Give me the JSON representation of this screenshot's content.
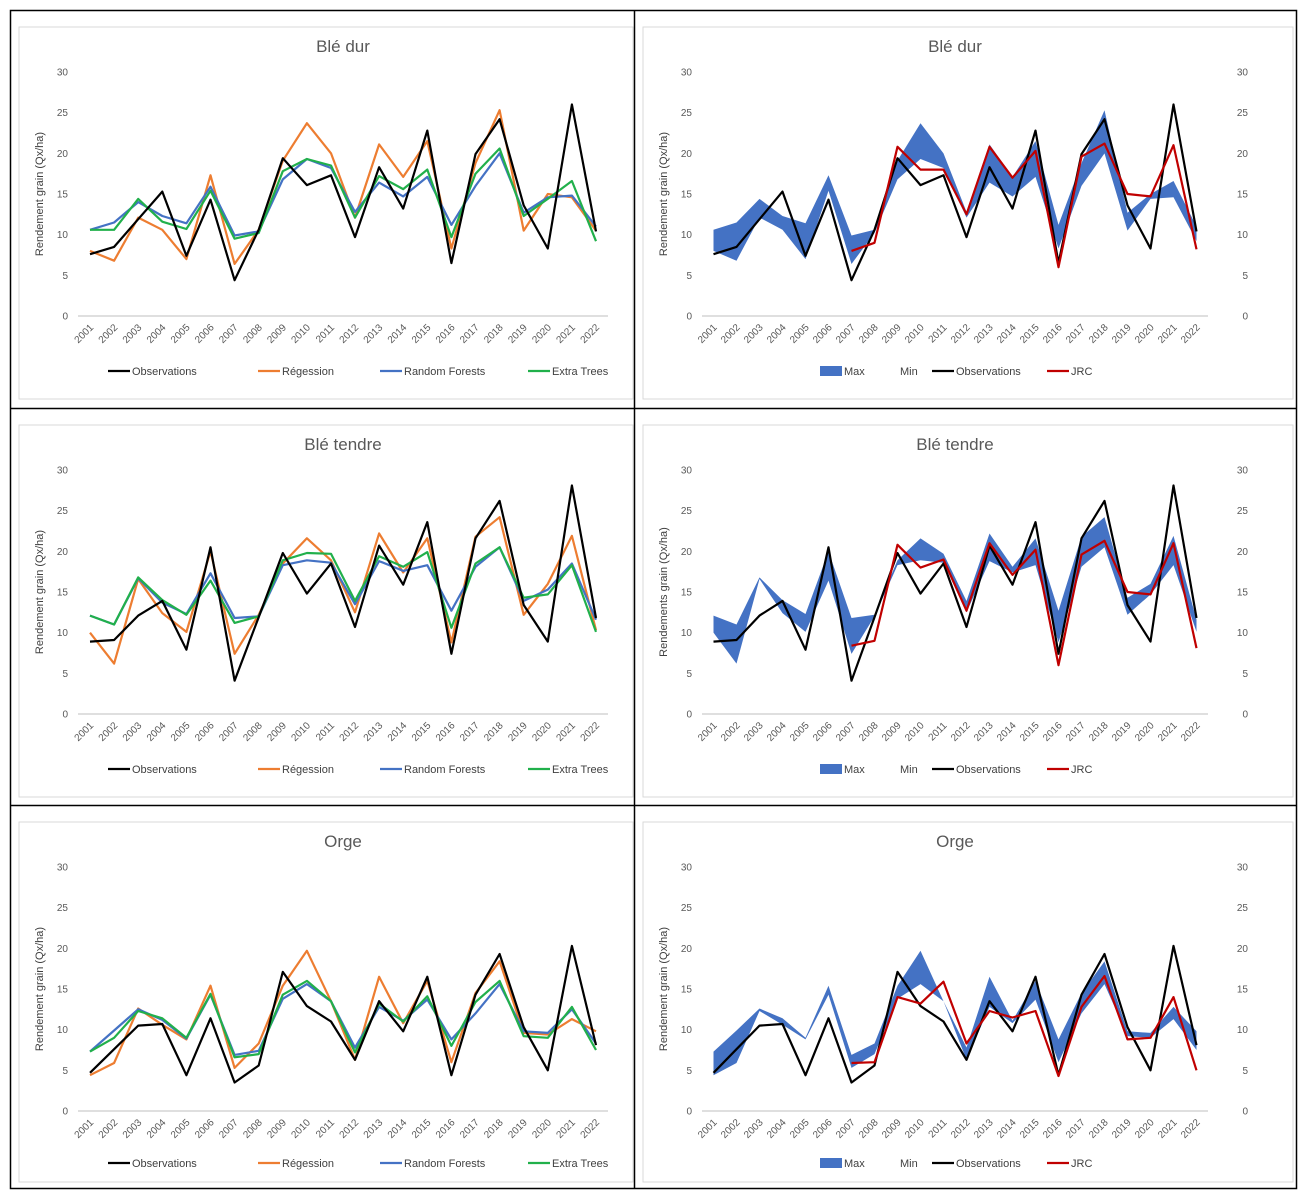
{
  "colors": {
    "observations": "#000000",
    "regression": "#ED7D31",
    "random_forests": "#4472C4",
    "extra_trees": "#21B04B",
    "band": "#4472C4",
    "jrc": "#C00000"
  },
  "chart_data": [
    {
      "type": "line",
      "title": "Blé dur",
      "ylabel": "Rendement grain (Qx/ha)",
      "ylim": [
        0,
        30
      ],
      "yticks": [
        "0",
        "5",
        "10",
        "15",
        "20",
        "25",
        "30"
      ],
      "categories": [
        "2001",
        "2002",
        "2003",
        "2004",
        "2005",
        "2006",
        "2007",
        "2008",
        "2009",
        "2010",
        "2011",
        "2012",
        "2013",
        "2014",
        "2015",
        "2016",
        "2017",
        "2018",
        "2019",
        "2020",
        "2021",
        "2022"
      ],
      "series": [
        {
          "name": "Observations",
          "color_key": "observations",
          "values": [
            7.6,
            8.5,
            11.9,
            15.3,
            7.4,
            14.3,
            4.4,
            10.6,
            19.4,
            16.1,
            17.3,
            9.7,
            18.3,
            13.2,
            22.8,
            6.5,
            19.9,
            24.2,
            13.6,
            8.3,
            26.0,
            10.4
          ]
        },
        {
          "name": "Régession",
          "color_key": "regression",
          "values": [
            8.0,
            6.8,
            12.1,
            10.6,
            7.0,
            17.3,
            6.4,
            10.6,
            19.1,
            23.7,
            20.0,
            12.1,
            21.1,
            17.1,
            21.5,
            8.3,
            18.8,
            25.3,
            10.5,
            15.0,
            14.6,
            10.5
          ]
        },
        {
          "name": "Random Forests",
          "color_key": "random_forests",
          "values": [
            10.6,
            11.5,
            14.0,
            12.3,
            11.4,
            15.9,
            9.9,
            10.4,
            16.8,
            19.3,
            18.2,
            12.8,
            16.4,
            14.7,
            17.1,
            11.2,
            16.0,
            20.0,
            12.7,
            14.6,
            14.8,
            11.0
          ]
        },
        {
          "name": "Extra Trees",
          "color_key": "extra_trees",
          "values": [
            10.6,
            10.6,
            14.4,
            11.6,
            10.7,
            15.4,
            9.5,
            10.2,
            17.8,
            19.3,
            18.5,
            12.1,
            17.2,
            15.6,
            18.0,
            9.7,
            17.5,
            20.6,
            12.3,
            14.4,
            16.6,
            9.2
          ]
        }
      ]
    },
    {
      "type": "area",
      "title": "Blé dur",
      "ylabel": "Rendement grain (Qx/ha)",
      "ylim": [
        0,
        30
      ],
      "yticks": [
        "0",
        "5",
        "10",
        "15",
        "20",
        "25",
        "30"
      ],
      "secondary_axis": true,
      "categories": [
        "2001",
        "2002",
        "2003",
        "2004",
        "2005",
        "2006",
        "2007",
        "2008",
        "2009",
        "2010",
        "2011",
        "2012",
        "2013",
        "2014",
        "2015",
        "2016",
        "2017",
        "2018",
        "2019",
        "2020",
        "2021",
        "2022"
      ],
      "legend": [
        "Max",
        "Min",
        "Observations",
        "JRC"
      ],
      "band": {
        "max": [
          10.6,
          11.5,
          14.4,
          12.3,
          11.4,
          17.3,
          9.9,
          10.6,
          19.1,
          23.7,
          20.0,
          12.8,
          21.1,
          17.1,
          21.5,
          11.2,
          18.8,
          25.3,
          12.7,
          15.0,
          16.6,
          11.0
        ],
        "min": [
          8.0,
          6.8,
          12.1,
          10.6,
          7.0,
          15.4,
          6.4,
          10.2,
          16.8,
          19.3,
          18.2,
          12.1,
          16.4,
          14.7,
          17.1,
          8.3,
          16.0,
          20.0,
          10.5,
          14.4,
          14.6,
          9.2
        ]
      },
      "series": [
        {
          "name": "Observations",
          "color_key": "observations",
          "values": [
            7.6,
            8.5,
            11.9,
            15.3,
            7.4,
            14.3,
            4.4,
            10.6,
            19.4,
            16.1,
            17.3,
            9.7,
            18.3,
            13.2,
            22.8,
            6.5,
            19.9,
            24.2,
            13.6,
            8.3,
            26.0,
            10.4
          ]
        },
        {
          "name": "JRC",
          "color_key": "jrc",
          "values": [
            null,
            null,
            null,
            null,
            null,
            null,
            8.0,
            9.0,
            20.8,
            18.0,
            18.0,
            12.5,
            20.8,
            17.0,
            20.3,
            6.0,
            19.6,
            21.2,
            15.0,
            14.7,
            21.0,
            8.2
          ]
        }
      ]
    },
    {
      "type": "line",
      "title": "Blé tendre",
      "ylabel": "Rendement grain (Qx/ha)",
      "ylim": [
        0,
        30
      ],
      "yticks": [
        "0",
        "5",
        "10",
        "15",
        "20",
        "25",
        "30"
      ],
      "categories": [
        "2001",
        "2002",
        "2003",
        "2004",
        "2005",
        "2006",
        "2007",
        "2008",
        "2009",
        "2010",
        "2011",
        "2012",
        "2013",
        "2014",
        "2015",
        "2016",
        "2017",
        "2018",
        "2019",
        "2020",
        "2021",
        "2022"
      ],
      "series": [
        {
          "name": "Observations",
          "color_key": "observations",
          "values": [
            8.9,
            9.1,
            12.1,
            13.9,
            7.9,
            20.5,
            4.1,
            11.9,
            19.8,
            14.8,
            18.5,
            10.7,
            20.7,
            15.9,
            23.6,
            7.4,
            21.6,
            26.2,
            13.4,
            8.9,
            28.1,
            11.8
          ]
        },
        {
          "name": "Régession",
          "color_key": "regression",
          "values": [
            10.0,
            6.2,
            16.6,
            12.4,
            10.1,
            20.0,
            7.4,
            12.2,
            18.5,
            21.6,
            18.9,
            12.5,
            22.2,
            17.4,
            21.6,
            8.8,
            21.8,
            24.2,
            12.2,
            16.0,
            21.9,
            10.3
          ]
        },
        {
          "name": "Random Forests",
          "color_key": "random_forests",
          "values": [
            12.1,
            11.0,
            16.7,
            13.7,
            12.3,
            17.3,
            11.8,
            12.0,
            18.3,
            18.9,
            18.6,
            13.5,
            18.8,
            17.6,
            18.3,
            12.7,
            18.1,
            20.5,
            13.9,
            15.3,
            18.5,
            11.6
          ]
        },
        {
          "name": "Extra Trees",
          "color_key": "extra_trees",
          "values": [
            12.1,
            11.0,
            16.8,
            14.0,
            12.2,
            16.4,
            11.2,
            12.0,
            18.9,
            19.8,
            19.7,
            13.9,
            19.4,
            18.1,
            19.9,
            10.6,
            18.5,
            20.5,
            14.3,
            14.7,
            18.3,
            10.1
          ]
        }
      ]
    },
    {
      "type": "area",
      "title": "Blé tendre",
      "ylabel": "Rendements grain (Qx/ha)",
      "ylim": [
        0,
        30
      ],
      "yticks": [
        "0",
        "5",
        "10",
        "15",
        "20",
        "25",
        "30"
      ],
      "secondary_axis": true,
      "categories": [
        "2001",
        "2002",
        "2003",
        "2004",
        "2005",
        "2006",
        "2007",
        "2008",
        "2009",
        "2010",
        "2011",
        "2012",
        "2013",
        "2014",
        "2015",
        "2016",
        "2017",
        "2018",
        "2019",
        "2020",
        "2021",
        "2022"
      ],
      "legend": [
        "Max",
        "Min",
        "Observations",
        "JRC"
      ],
      "band": {
        "max": [
          12.1,
          11.0,
          16.8,
          14.0,
          12.3,
          20.0,
          11.8,
          12.2,
          18.9,
          21.6,
          19.7,
          13.9,
          22.2,
          18.1,
          21.6,
          12.7,
          21.8,
          24.2,
          14.3,
          16.0,
          21.9,
          11.6
        ],
        "min": [
          10.0,
          6.2,
          16.6,
          12.4,
          10.1,
          16.4,
          7.4,
          12.0,
          18.3,
          18.9,
          18.6,
          12.5,
          18.8,
          17.4,
          18.3,
          8.8,
          18.1,
          20.5,
          12.2,
          14.7,
          18.3,
          10.1
        ]
      },
      "series": [
        {
          "name": "Observations",
          "color_key": "observations",
          "values": [
            8.9,
            9.1,
            12.1,
            13.9,
            7.9,
            20.5,
            4.1,
            11.9,
            19.8,
            14.8,
            18.5,
            10.7,
            20.7,
            15.9,
            23.6,
            7.4,
            21.6,
            26.2,
            13.4,
            8.9,
            28.1,
            11.8
          ]
        },
        {
          "name": "JRC",
          "color_key": "jrc",
          "values": [
            null,
            null,
            null,
            null,
            null,
            null,
            8.4,
            9.0,
            20.8,
            18.0,
            19.0,
            12.7,
            21.0,
            17.1,
            20.2,
            6.0,
            19.6,
            21.3,
            15.0,
            14.7,
            21.0,
            8.1
          ]
        }
      ]
    },
    {
      "type": "line",
      "title": "Orge",
      "ylabel": "Rendement grain (Qx/ha)",
      "ylim": [
        0,
        30
      ],
      "yticks": [
        "0",
        "5",
        "10",
        "15",
        "20",
        "25",
        "30"
      ],
      "categories": [
        "2001",
        "2002",
        "2003",
        "2004",
        "2005",
        "2006",
        "2007",
        "2008",
        "2009",
        "2010",
        "2011",
        "2012",
        "2013",
        "2014",
        "2015",
        "2016",
        "2017",
        "2018",
        "2019",
        "2020",
        "2021",
        "2022"
      ],
      "series": [
        {
          "name": "Observations",
          "color_key": "observations",
          "values": [
            4.7,
            7.6,
            10.5,
            10.7,
            4.4,
            11.4,
            3.5,
            5.6,
            17.1,
            12.9,
            11.0,
            6.3,
            13.5,
            9.8,
            16.5,
            4.4,
            14.3,
            19.3,
            10.3,
            5.0,
            20.3,
            8.1
          ]
        },
        {
          "name": "Régession",
          "color_key": "regression",
          "values": [
            4.4,
            5.9,
            12.6,
            10.6,
            8.8,
            15.4,
            5.3,
            8.3,
            15.4,
            19.7,
            13.5,
            6.3,
            16.5,
            10.8,
            16.0,
            6.0,
            14.5,
            18.4,
            9.6,
            9.4,
            11.3,
            9.8
          ]
        },
        {
          "name": "Random Forests",
          "color_key": "random_forests",
          "values": [
            7.3,
            9.9,
            12.5,
            11.2,
            8.9,
            14.3,
            6.9,
            7.4,
            13.8,
            15.6,
            13.5,
            7.8,
            12.8,
            11.1,
            13.7,
            8.8,
            12.0,
            15.6,
            9.8,
            9.6,
            12.5,
            8.3
          ]
        },
        {
          "name": "Extra Trees",
          "color_key": "extra_trees",
          "values": [
            7.3,
            9.0,
            12.3,
            11.4,
            9.0,
            14.4,
            6.6,
            7.0,
            14.3,
            16.0,
            13.5,
            7.2,
            13.2,
            11.0,
            14.1,
            8.0,
            13.4,
            16.0,
            9.2,
            9.0,
            12.8,
            7.5
          ]
        }
      ]
    },
    {
      "type": "area",
      "title": "Orge",
      "ylabel": "Rendement grain (Qx/ha)",
      "ylim": [
        0,
        30
      ],
      "yticks": [
        "0",
        "5",
        "10",
        "15",
        "20",
        "25",
        "30"
      ],
      "secondary_axis": true,
      "categories": [
        "2001",
        "2002",
        "2003",
        "2004",
        "2005",
        "2006",
        "2007",
        "2008",
        "2009",
        "2010",
        "2011",
        "2012",
        "2013",
        "2014",
        "2015",
        "2016",
        "2017",
        "2018",
        "2019",
        "2020",
        "2021",
        "2022"
      ],
      "legend": [
        "Max",
        "Min",
        "Observations",
        "JRC"
      ],
      "band": {
        "max": [
          7.3,
          9.9,
          12.6,
          11.4,
          9.0,
          15.4,
          6.9,
          8.3,
          15.4,
          19.7,
          13.5,
          7.8,
          16.5,
          11.1,
          16.0,
          8.8,
          14.5,
          18.4,
          9.8,
          9.6,
          12.8,
          9.8
        ],
        "min": [
          4.4,
          5.9,
          12.3,
          10.6,
          8.8,
          14.3,
          5.3,
          7.0,
          13.8,
          15.6,
          13.5,
          6.3,
          12.8,
          10.8,
          13.7,
          6.0,
          12.0,
          15.6,
          9.2,
          9.0,
          11.3,
          7.5
        ]
      },
      "series": [
        {
          "name": "Observations",
          "color_key": "observations",
          "values": [
            4.7,
            7.6,
            10.5,
            10.7,
            4.4,
            11.4,
            3.5,
            5.6,
            17.1,
            12.9,
            11.0,
            6.3,
            13.5,
            9.8,
            16.5,
            4.4,
            14.3,
            19.3,
            10.3,
            5.0,
            20.3,
            8.1
          ]
        },
        {
          "name": "JRC",
          "color_key": "jrc",
          "values": [
            null,
            null,
            null,
            null,
            null,
            null,
            5.9,
            6.0,
            14.0,
            13.2,
            15.9,
            8.3,
            12.3,
            11.5,
            12.3,
            4.3,
            12.8,
            16.6,
            8.8,
            9.0,
            14.0,
            5.0
          ]
        }
      ]
    }
  ]
}
